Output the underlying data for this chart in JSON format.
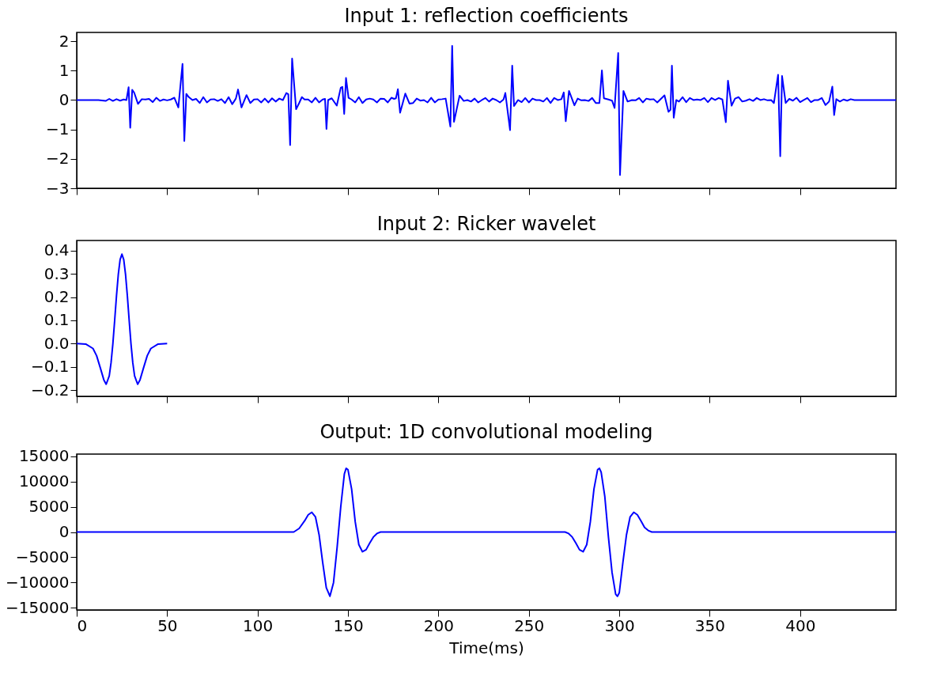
{
  "chart_data": [
    {
      "type": "line",
      "title": "Input 1: reflection coefficients",
      "tick_labels": "y",
      "grid": false,
      "line_style": "solid",
      "xlim": [
        0,
        453
      ],
      "xticks": [
        0,
        50,
        100,
        150,
        200,
        250,
        300,
        350,
        400
      ],
      "ylim": [
        -3,
        2.3
      ],
      "yticks": [
        -3,
        -2,
        -1,
        0,
        1,
        2
      ],
      "x": [
        0,
        12,
        16,
        18,
        20,
        22,
        24,
        26,
        27.5,
        28.7,
        29.6,
        30.7,
        31.8,
        33.9,
        36,
        38,
        40,
        42,
        44,
        46,
        48,
        50,
        52,
        54,
        56.2,
        58.5,
        59.5,
        60.6,
        62,
        64,
        66,
        68,
        70,
        72,
        74,
        76,
        78,
        80,
        82,
        84,
        86,
        88,
        89.2,
        91.1,
        93.9,
        96,
        98,
        100,
        102,
        104,
        106,
        108,
        110,
        112,
        114,
        115.9,
        117,
        118,
        119.1,
        121.3,
        123,
        124.5,
        126,
        128,
        130,
        132,
        134,
        136,
        137.3,
        138.1,
        139,
        141,
        143.8,
        146,
        146.9,
        147.9,
        148.9,
        150.3,
        152,
        154,
        156,
        158,
        160,
        162,
        164,
        166,
        168,
        170,
        172,
        174,
        175.5,
        176.5,
        177.6,
        178.8,
        181.7,
        184,
        186,
        188,
        190,
        192,
        194,
        196,
        198,
        200,
        202,
        204,
        206.6,
        207.6,
        208.6,
        211.7,
        214,
        216,
        218,
        220,
        222,
        224,
        226,
        228,
        230,
        232,
        234,
        236,
        237,
        239.6,
        240.8,
        241.8,
        244,
        246,
        248,
        250,
        252,
        254,
        256,
        258,
        260,
        262,
        264,
        266,
        268,
        269.3,
        270.4,
        272.2,
        275.2,
        277,
        279,
        281,
        283,
        285,
        287,
        289,
        290.4,
        291.5,
        294,
        296,
        297.4,
        299.4,
        300.4,
        302.3,
        304.6,
        307,
        309,
        311,
        313,
        315,
        317,
        319,
        321,
        323,
        325,
        327.2,
        328.3,
        329.1,
        330.1,
        331.5,
        333,
        335,
        337,
        339,
        341,
        343,
        345,
        347,
        349,
        351,
        353,
        355,
        357,
        358.9,
        360.1,
        362.1,
        364,
        366,
        368,
        370,
        372,
        374,
        376,
        378,
        380,
        382,
        384,
        385.5,
        387.8,
        389,
        390,
        392,
        394,
        396,
        398,
        400,
        402,
        404,
        406,
        408,
        410,
        412,
        414,
        416,
        417.8,
        418.8,
        420,
        422,
        424,
        426,
        428,
        430,
        453
      ],
      "series": [
        {
          "color": "#0000ff",
          "values": [
            0,
            0,
            -0.03,
            0.04,
            -0.03,
            0.03,
            -0.02,
            0.02,
            0,
            0.44,
            -0.94,
            0.35,
            0.25,
            -0.13,
            0.03,
            0.02,
            0.04,
            -0.07,
            0.08,
            -0.03,
            0.02,
            -0.01,
            0.02,
            0.08,
            -0.25,
            1.23,
            -1.39,
            0.21,
            0.1,
            0,
            0.04,
            -0.1,
            0.1,
            -0.08,
            0.02,
            0.03,
            -0.03,
            0.03,
            -0.1,
            0.1,
            -0.14,
            0.05,
            0.36,
            -0.25,
            0.17,
            -0.1,
            0.02,
            0.03,
            -0.08,
            0.05,
            -0.08,
            0.06,
            -0.05,
            0.05,
            0,
            0.24,
            0.2,
            -1.53,
            1.41,
            -0.31,
            -0.1,
            0.1,
            0.02,
            0.02,
            -0.08,
            0.08,
            -0.08,
            0.02,
            0.04,
            -0.98,
            0,
            0.06,
            -0.19,
            0.42,
            0.45,
            -0.47,
            0.75,
            0.08,
            0.02,
            -0.08,
            0.1,
            -0.1,
            0.02,
            0.05,
            0.02,
            -0.08,
            0.05,
            0.04,
            -0.08,
            0.08,
            0.04,
            0.06,
            0.37,
            -0.43,
            0.22,
            -0.12,
            -0.1,
            0.05,
            -0.02,
            0,
            -0.08,
            0.08,
            -0.08,
            0.02,
            0.03,
            0.05,
            -0.9,
            1.84,
            -0.74,
            0.15,
            -0.03,
            0,
            -0.05,
            0.05,
            -0.08,
            0,
            0.07,
            -0.05,
            0.05,
            0,
            -0.08,
            0.02,
            0.24,
            -1.02,
            1.17,
            -0.2,
            0,
            -0.07,
            0.07,
            -0.08,
            0.05,
            0,
            0,
            -0.05,
            0.07,
            -0.1,
            0.07,
            0,
            0.03,
            0.26,
            -0.72,
            0.31,
            -0.18,
            0.05,
            -0.01,
            0,
            -0.03,
            0.07,
            -0.1,
            -0.1,
            1.01,
            0.06,
            0.02,
            -0.02,
            -0.27,
            1.6,
            -2.55,
            0.31,
            -0.05,
            0,
            -0.01,
            0.07,
            -0.08,
            0.05,
            0.02,
            0.03,
            -0.08,
            0.04,
            0.16,
            -0.4,
            -0.33,
            1.17,
            -0.6,
            0,
            -0.05,
            0.1,
            -0.07,
            0.07,
            0,
            0.02,
            0,
            0.07,
            -0.07,
            0.07,
            0,
            0.07,
            0.02,
            -0.75,
            0.66,
            -0.19,
            0.05,
            0.1,
            -0.05,
            -0.02,
            0.03,
            -0.03,
            0.07,
            0,
            0.03,
            -0.01,
            0,
            -0.1,
            0.86,
            -1.91,
            0.82,
            -0.1,
            0.04,
            -0.02,
            0.08,
            -0.07,
            0,
            0.07,
            -0.07,
            0,
            0,
            0.07,
            -0.17,
            -0.05,
            0.46,
            -0.51,
            0.03,
            -0.05,
            0.02,
            -0.02,
            0.03,
            0,
            0
          ]
        }
      ]
    },
    {
      "type": "line",
      "title": "Input 2: Ricker wavelet",
      "tick_labels": "y",
      "grid": false,
      "line_style": "solid",
      "xlim": [
        0,
        453
      ],
      "xticks": [
        0,
        50,
        100,
        150,
        200,
        250,
        300,
        350,
        400
      ],
      "ylim": [
        -0.227,
        0.444
      ],
      "yticks": [
        -0.2,
        -0.1,
        {
          "value": 0,
          "label": "0.0"
        },
        0.1,
        0.2,
        0.3,
        0.4
      ],
      "x": [
        0,
        5,
        9,
        11,
        13,
        15,
        16.3,
        18,
        19,
        20,
        21,
        22,
        23,
        24,
        25,
        26,
        27,
        28,
        29,
        30,
        31,
        32,
        33.7,
        35,
        37,
        39,
        41,
        45,
        50
      ],
      "series": [
        {
          "color": "#0000ff",
          "values": [
            0,
            -0.002,
            -0.021,
            -0.052,
            -0.103,
            -0.156,
            -0.175,
            -0.139,
            -0.082,
            0,
            0.101,
            0.206,
            0.298,
            0.362,
            0.385,
            0.362,
            0.298,
            0.206,
            0.101,
            0,
            -0.082,
            -0.139,
            -0.175,
            -0.156,
            -0.103,
            -0.052,
            -0.021,
            -0.002,
            0
          ]
        }
      ]
    },
    {
      "type": "line",
      "title": "Output: 1D convolutional modeling",
      "xlabel": "Time(ms)",
      "grid": false,
      "line_style": "solid",
      "xlim": [
        0,
        453
      ],
      "xticks": [
        0,
        50,
        100,
        150,
        200,
        250,
        300,
        350,
        400
      ],
      "ylim": [
        -15400,
        15400
      ],
      "yticks": [
        -15000,
        -10000,
        -5000,
        0,
        5000,
        10000,
        15000
      ],
      "x": [
        0,
        115,
        120,
        123,
        126,
        128,
        130,
        132,
        134,
        136,
        138,
        140,
        142,
        144,
        146,
        148,
        149,
        150,
        152,
        154,
        156,
        158,
        160,
        162,
        164,
        166,
        168,
        172,
        265,
        268,
        270,
        272,
        274,
        276,
        278,
        280,
        282,
        284,
        286,
        288,
        289,
        290,
        292,
        294,
        296,
        298,
        299,
        300,
        302,
        304,
        306,
        308,
        310,
        312,
        314,
        316,
        318,
        322,
        453
      ],
      "series": [
        {
          "color": "#0000ff",
          "values": [
            0,
            0,
            0,
            700,
            2200,
            3400,
            3900,
            3000,
            -500,
            -6000,
            -11000,
            -12700,
            -10000,
            -3000,
            5000,
            11500,
            12600,
            12300,
            8500,
            2000,
            -2500,
            -3900,
            -3500,
            -2200,
            -1000,
            -300,
            0,
            0,
            0,
            0,
            0,
            -300,
            -1000,
            -2200,
            -3500,
            -3900,
            -2500,
            2000,
            8500,
            12300,
            12600,
            11800,
            7000,
            -1000,
            -8000,
            -12300,
            -12700,
            -12000,
            -6000,
            -500,
            3000,
            3900,
            3400,
            2200,
            900,
            300,
            0,
            0,
            0
          ]
        }
      ]
    }
  ]
}
